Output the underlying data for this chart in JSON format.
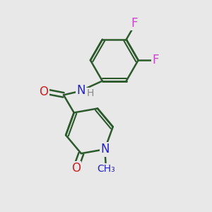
{
  "bg_color": "#e8e8e8",
  "bond_color": "#2d5a2d",
  "bond_width": 1.8,
  "atom_colors": {
    "F": "#cc44cc",
    "O": "#cc2222",
    "N": "#2222cc",
    "H": "#888888",
    "C": "#2d5a2d"
  }
}
